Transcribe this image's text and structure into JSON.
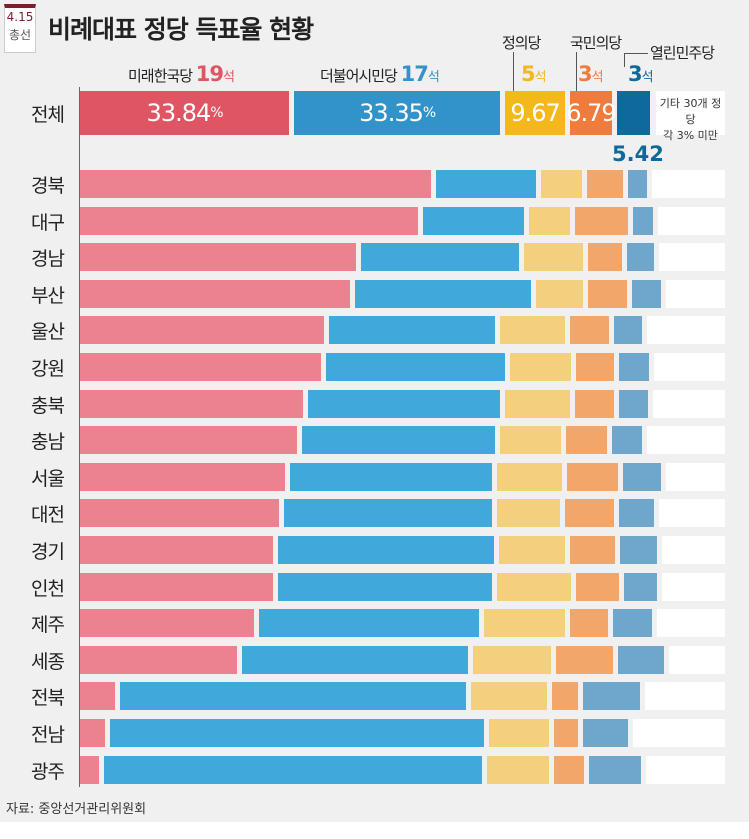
{
  "badge": {
    "line1": "4.15",
    "line2": "총선"
  },
  "chart_data": {
    "type": "bar",
    "orientation": "horizontal-stacked",
    "title": "비례대표 정당 득표율 현황",
    "unit": "%",
    "colors_overall": [
      "#e05563",
      "#3193c9",
      "#f5b81c",
      "#ef7b3d",
      "#0e6a9b"
    ],
    "colors_regional": [
      "#ec8290",
      "#41a8dc",
      "#f3cf7e",
      "#f3a66a",
      "#6fa6cc"
    ],
    "parties": [
      {
        "name": "미래한국당",
        "seats": "19",
        "seat_unit": "석",
        "overall": 33.84,
        "overall_label": "33.84",
        "pct": "%"
      },
      {
        "name": "더불어시민당",
        "seats": "17",
        "seat_unit": "석",
        "overall": 33.35,
        "overall_label": "33.35",
        "pct": "%"
      },
      {
        "name": "정의당",
        "seats": "5",
        "seat_unit": "석",
        "overall": 9.67,
        "overall_label": "9.67"
      },
      {
        "name": "국민의당",
        "seats": "3",
        "seat_unit": "석",
        "overall": 6.79,
        "overall_label": "6.79"
      },
      {
        "name": "열린민주당",
        "seats": "3",
        "seat_unit": "석",
        "overall": 5.42,
        "overall_label": "5.42"
      }
    ],
    "overall_row_label": "전체",
    "others_note": [
      "기타 30개 정당",
      "각 3% 미만"
    ],
    "categories": [
      "경북",
      "대구",
      "경남",
      "부산",
      "울산",
      "강원",
      "충북",
      "충남",
      "서울",
      "대전",
      "경기",
      "인천",
      "제주",
      "세종",
      "전북",
      "전남",
      "광주"
    ],
    "series": [
      {
        "name": "미래한국당",
        "values": [
          56.8,
          54.7,
          44.7,
          43.7,
          39.5,
          39.0,
          36.1,
          35.1,
          33.2,
          32.2,
          31.2,
          31.2,
          28.2,
          25.4,
          5.7,
          4.0,
          3.1
        ]
      },
      {
        "name": "더불어시민당",
        "values": [
          16.2,
          16.3,
          25.6,
          28.5,
          26.9,
          29.0,
          31.1,
          31.2,
          32.7,
          33.7,
          35.0,
          34.6,
          35.6,
          36.6,
          56.0,
          60.5,
          61.2
        ]
      },
      {
        "name": "정의당",
        "values": [
          6.6,
          6.6,
          9.5,
          7.6,
          10.5,
          9.9,
          10.5,
          9.9,
          10.4,
          10.2,
          10.7,
          12.0,
          13.1,
          12.6,
          12.3,
          9.7,
          10.0
        ]
      },
      {
        "name": "국민의당",
        "values": [
          5.8,
          8.7,
          5.5,
          6.3,
          6.3,
          6.0,
          6.3,
          6.6,
          8.4,
          7.9,
          7.3,
          7.0,
          6.1,
          9.2,
          4.2,
          4.0,
          4.9
        ]
      },
      {
        "name": "열린민주당",
        "values": [
          3.1,
          3.2,
          4.4,
          4.7,
          4.5,
          4.9,
          4.7,
          4.9,
          6.0,
          5.7,
          6.0,
          5.3,
          6.3,
          7.4,
          9.2,
          7.3,
          8.4
        ]
      }
    ]
  },
  "source": "자료: 중앙선거관리위원회"
}
